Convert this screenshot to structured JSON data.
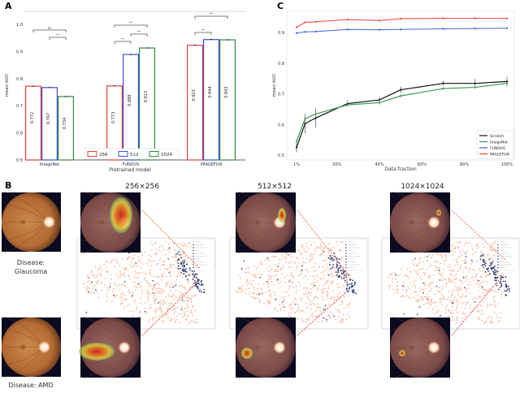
{
  "panels": {
    "a": "A",
    "b": "B",
    "c": "C"
  },
  "chart_data": [
    {
      "type": "bar",
      "panel": "A",
      "xlabel": "Pretrained model",
      "ylabel": "mean AUC",
      "ylim": [
        0.5,
        1.0
      ],
      "yticks": [
        "0.5",
        "0.6",
        "0.7",
        "0.8",
        "0.9",
        "1.0"
      ],
      "categories": [
        "ImageNet",
        "FUNDUS",
        "IMAGEFUN"
      ],
      "series": [
        {
          "name": "256",
          "color": "#e8403a",
          "values": [
            0.772,
            0.773,
            0.923
          ]
        },
        {
          "name": "512",
          "color": "#3b4fe0",
          "values": [
            0.767,
            0.889,
            0.944
          ]
        },
        {
          "name": "1024",
          "color": "#2e8b3e",
          "values": [
            0.734,
            0.913,
            0.943
          ]
        }
      ],
      "value_labels": [
        [
          "0.772",
          "0.767",
          "0.734"
        ],
        [
          "0.773",
          "0.889",
          "0.913"
        ],
        [
          "0.923",
          "0.944",
          "0.943"
        ]
      ],
      "significance": [
        {
          "group": 0,
          "from": 0,
          "to": 2,
          "label": "ns"
        },
        {
          "group": 0,
          "from": 1,
          "to": 2,
          "label": "**"
        },
        {
          "group": 1,
          "from": 0,
          "to": 2,
          "label": "**"
        },
        {
          "group": 1,
          "from": 0,
          "to": 1,
          "label": "**"
        },
        {
          "group": 1,
          "from": 1,
          "to": 2,
          "label": "**"
        },
        {
          "group": 2,
          "from": 0,
          "to": 2,
          "label": "**"
        },
        {
          "group": 2,
          "from": 0,
          "to": 1,
          "label": "**"
        }
      ],
      "legend": "bottom-center"
    },
    {
      "type": "line",
      "panel": "C",
      "xlabel": "Data fraction",
      "ylabel": "mean AUC",
      "x": [
        1,
        5,
        10,
        25,
        40,
        50,
        70,
        85,
        100
      ],
      "xticks": [
        "1%",
        "20%",
        "40%",
        "60%",
        "80%",
        "100%"
      ],
      "xtick_values": [
        1,
        20,
        40,
        60,
        80,
        100
      ],
      "ylim": [
        0.48,
        0.96
      ],
      "yticks": [
        "0.5",
        "0.6",
        "0.7",
        "0.8",
        "0.9"
      ],
      "legend": "bottom-right",
      "series": [
        {
          "name": "Scratch",
          "color": "#111111",
          "values": [
            0.525,
            0.603,
            0.621,
            0.668,
            0.68,
            0.713,
            0.734,
            0.734,
            0.74
          ]
        },
        {
          "name": "ImageNet",
          "color": "#3a9a4a",
          "values": [
            0.545,
            0.619,
            0.634,
            0.664,
            0.671,
            0.693,
            0.717,
            0.721,
            0.734
          ]
        },
        {
          "name": "FUNDUS",
          "color": "#3f63e0",
          "values": [
            0.898,
            0.902,
            0.903,
            0.91,
            0.909,
            0.91,
            0.912,
            0.913,
            0.914
          ]
        },
        {
          "name": "IMAGEFUN",
          "color": "#f0443a",
          "values": [
            0.917,
            0.933,
            0.935,
            0.942,
            0.939,
            0.945,
            0.946,
            0.946,
            0.946
          ]
        }
      ]
    }
  ],
  "panel_b": {
    "resolutions": [
      "256×256",
      "512×512",
      "1024×1024"
    ],
    "examples": [
      {
        "label": "Disease:\nGlaucoma",
        "line1": "Disease:",
        "line2": "Glaucoma"
      },
      {
        "label": "Disease: AMD",
        "line1": "Disease: AMD"
      }
    ],
    "colors": {
      "normal": "#f8b89a",
      "disease": "#2d3a6e",
      "arrow": "#e8502a"
    }
  }
}
